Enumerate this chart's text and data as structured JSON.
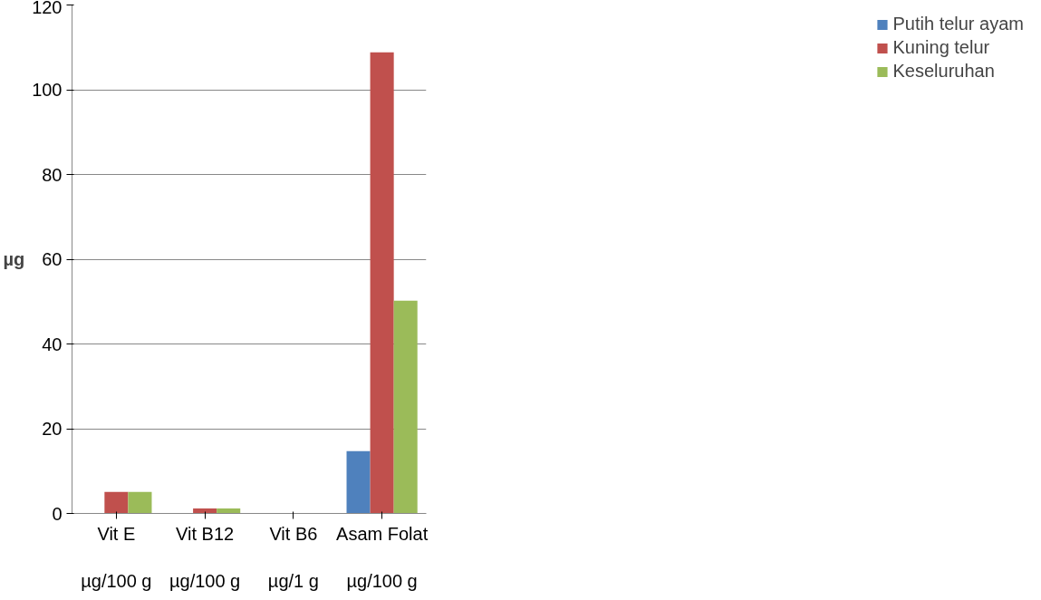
{
  "chart_data": {
    "type": "bar",
    "categories": [
      "Vit E\n\nµg/100 g",
      "Vit B12\n\nµg/100 g",
      "Vit B6\n\nµg/1 g",
      "Asam Folat\n\nµg/100 g"
    ],
    "ylabel": "µg",
    "ylim": [
      0,
      120
    ],
    "yticks": [
      0,
      20,
      40,
      60,
      80,
      100,
      120
    ],
    "grid": "y",
    "legend": "right",
    "series": [
      {
        "name": "Putih telur ayam",
        "color": "#4f81bd",
        "values": [
          0,
          0,
          0,
          14.7
        ]
      },
      {
        "name": "Kuning telur",
        "color": "#c0504d",
        "values": [
          5.1,
          1.2,
          0,
          108.8
        ]
      },
      {
        "name": "Keseluruhan",
        "color": "#9bbb59",
        "values": [
          5.1,
          1.2,
          0,
          50.2
        ]
      }
    ]
  }
}
